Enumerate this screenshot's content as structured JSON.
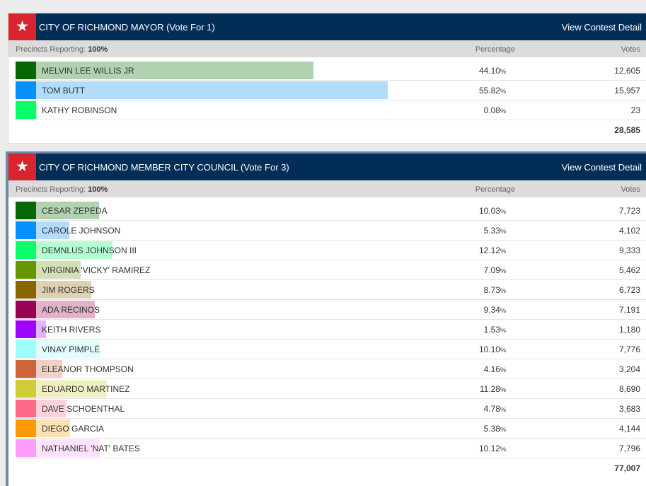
{
  "contests": [
    {
      "title": "CITY OF RICHMOND MAYOR (Vote For 1)",
      "detail_link": "View Contest Detail",
      "precincts_label": "Precincts Reporting:",
      "precincts_value": "100%",
      "pct_header": "Percentage",
      "votes_header": "Votes",
      "total": "28,585",
      "candidates": [
        {
          "name": "MELVIN LEE WILLIS JR",
          "pct": "44.10",
          "votes": "12,605",
          "color": "#046704",
          "bar_color": "#b1d2b0",
          "share": 0.441
        },
        {
          "name": "TOM BUTT",
          "pct": "55.82",
          "votes": "15,957",
          "color": "#0590fb",
          "bar_color": "#b3dcfc",
          "share": 0.5582
        },
        {
          "name": "KATHY ROBINSON",
          "pct": "0.08",
          "votes": "23",
          "color": "#0afc69",
          "bar_color": "#b5fdd0",
          "share": 0.0008
        }
      ]
    },
    {
      "title": "CITY OF RICHMOND MEMBER CITY COUNCIL (Vote For 3)",
      "detail_link": "View Contest Detail",
      "precincts_label": "Precincts Reporting:",
      "precincts_value": "100%",
      "pct_header": "Percentage",
      "votes_header": "Votes",
      "total": "77,007",
      "candidates": [
        {
          "name": "CESAR ZEPEDA",
          "pct": "10.03",
          "votes": "7,723",
          "color": "#046704",
          "bar_color": "#b1d2b0",
          "share": 0.1003
        },
        {
          "name": "CAROLE JOHNSON",
          "pct": "5.33",
          "votes": "4,102",
          "color": "#0590fb",
          "bar_color": "#b3dcfc",
          "share": 0.0533
        },
        {
          "name": "DEMNLUS JOHNSON III",
          "pct": "12.12",
          "votes": "9,333",
          "color": "#0afc69",
          "bar_color": "#b5fdd0",
          "share": 0.1212
        },
        {
          "name": "VIRGINIA 'VICKY' RAMIREZ",
          "pct": "7.09",
          "votes": "5,462",
          "color": "#679700",
          "bar_color": "#d2e0b3",
          "share": 0.0709
        },
        {
          "name": "JIM ROGERS",
          "pct": "8.73",
          "votes": "6,723",
          "color": "#8a6504",
          "bar_color": "#dcd1b3",
          "share": 0.0873
        },
        {
          "name": "ADA RECINOS",
          "pct": "9.34",
          "votes": "7,191",
          "color": "#9a0254",
          "bar_color": "#e0b3cb",
          "share": 0.0934
        },
        {
          "name": "KEITH RIVERS",
          "pct": "1.53",
          "votes": "1,180",
          "color": "#9e05fb",
          "bar_color": "#e3b5fd",
          "share": 0.0153
        },
        {
          "name": "VINAY PIMPLÉ",
          "pct": "10.10",
          "votes": "7,776",
          "color": "#9dfcfc",
          "bar_color": "#e2fdfd",
          "share": 0.101
        },
        {
          "name": "ELEANOR THOMPSON",
          "pct": "4.16",
          "votes": "3,204",
          "color": "#cd6537",
          "bar_color": "#efd0c3",
          "share": 0.0416
        },
        {
          "name": "EDUARDO MARTINEZ",
          "pct": "11.28",
          "votes": "8,690",
          "color": "#cfcd37",
          "bar_color": "#f0efc3",
          "share": 0.1128
        },
        {
          "name": "DAVE SCHOENTHAL",
          "pct": "4.78",
          "votes": "3,683",
          "color": "#fc6a8a",
          "bar_color": "#fdd2dc",
          "share": 0.0478
        },
        {
          "name": "DIEGO GARCIA",
          "pct": "5.38",
          "votes": "4,144",
          "color": "#fd9b05",
          "bar_color": "#fee1b4",
          "share": 0.0538
        },
        {
          "name": "NATHANIEL 'NAT' BATES",
          "pct": "10.12",
          "votes": "7,796",
          "color": "#fd9cf9",
          "bar_color": "#fee2fd",
          "share": 0.1012
        }
      ]
    }
  ]
}
